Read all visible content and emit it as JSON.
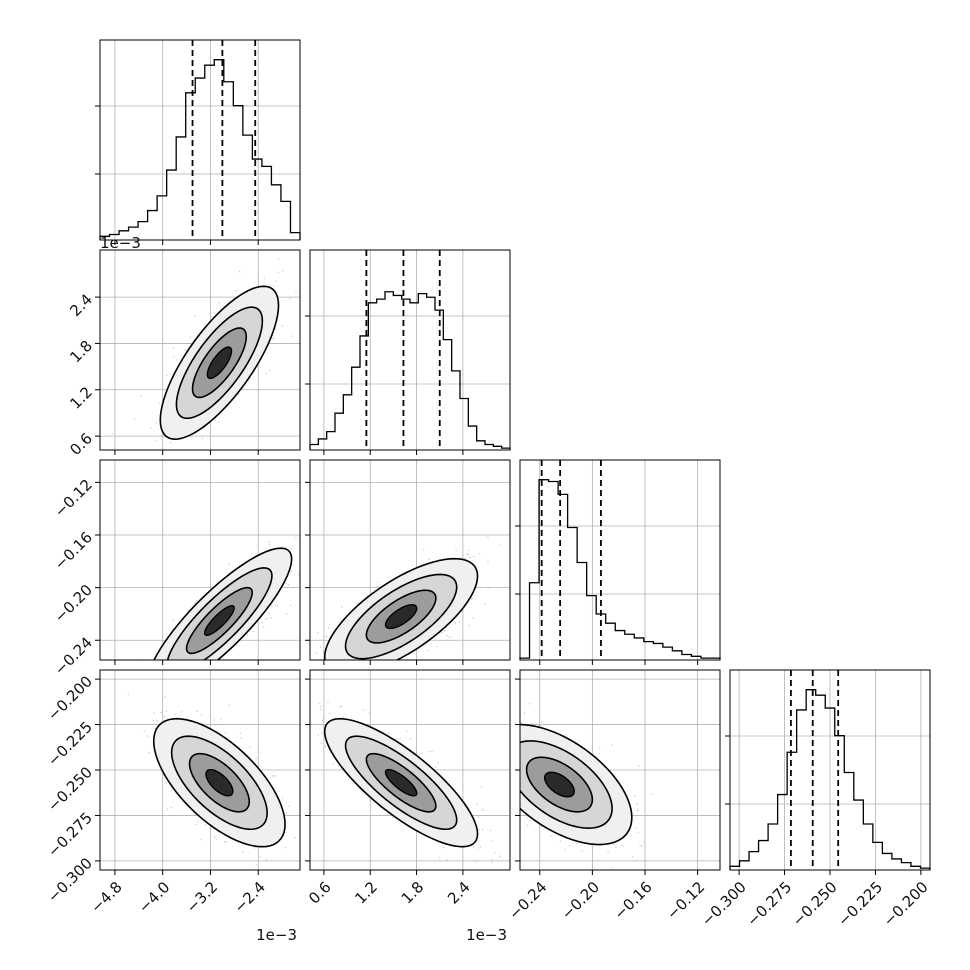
{
  "chart_data": {
    "type": "corner",
    "parameters": [
      {
        "range": [
          -5.05,
          -1.7
        ],
        "ticks": [
          -4.8,
          -4.0,
          -3.2,
          -2.4
        ],
        "tick_labels": [
          "−4.8",
          "−4.0",
          "−3.2",
          "−2.4"
        ],
        "offset_label": "1e−3",
        "quantiles": [
          -3.5,
          -3.0,
          -2.45
        ]
      },
      {
        "range": [
          0.42,
          3.01
        ],
        "ticks": [
          0.6,
          1.2,
          1.8,
          2.4
        ],
        "tick_labels": [
          "0.6",
          "1.2",
          "1.8",
          "2.4"
        ],
        "offset_label": "1e−3",
        "quantiles": [
          1.15,
          1.63,
          2.1
        ]
      },
      {
        "range": [
          -0.255,
          -0.103
        ],
        "ticks": [
          -0.24,
          -0.2,
          -0.16,
          -0.12
        ],
        "tick_labels": [
          "−0.24",
          "−0.20",
          "−0.16",
          "−0.12"
        ],
        "offset_label": "",
        "quantiles": [
          -0.2385,
          -0.2245,
          -0.1935
        ]
      },
      {
        "range": [
          -0.305,
          -0.195
        ],
        "ticks": [
          -0.3,
          -0.275,
          -0.25,
          -0.225,
          -0.2
        ],
        "tick_labels": [
          "−0.300",
          "−0.275",
          "−0.250",
          "−0.225",
          "−0.200"
        ],
        "offset_label": "",
        "quantiles": [
          -0.2715,
          -0.2595,
          -0.2455
        ]
      }
    ],
    "histograms": [
      [
        0.02,
        0.03,
        0.05,
        0.07,
        0.1,
        0.16,
        0.24,
        0.38,
        0.56,
        0.8,
        0.88,
        0.95,
        0.98,
        0.86,
        0.73,
        0.57,
        0.44,
        0.4,
        0.3,
        0.21,
        0.04
      ],
      [
        0.03,
        0.06,
        0.1,
        0.2,
        0.3,
        0.45,
        0.62,
        0.8,
        0.82,
        0.86,
        0.84,
        0.82,
        0.8,
        0.85,
        0.83,
        0.76,
        0.6,
        0.43,
        0.28,
        0.13,
        0.05,
        0.03,
        0.02,
        0.01
      ],
      [
        0.01,
        0.42,
        0.98,
        0.97,
        0.9,
        0.72,
        0.53,
        0.35,
        0.25,
        0.2,
        0.16,
        0.14,
        0.12,
        0.1,
        0.09,
        0.07,
        0.05,
        0.03,
        0.02,
        0.01,
        0.01
      ],
      [
        0.02,
        0.05,
        0.1,
        0.16,
        0.25,
        0.41,
        0.64,
        0.87,
        0.98,
        0.95,
        0.88,
        0.73,
        0.53,
        0.38,
        0.25,
        0.15,
        0.09,
        0.06,
        0.04,
        0.02,
        0.01
      ]
    ],
    "correlations": {
      "p1_p0": {
        "center": [
          -3.05,
          1.55
        ],
        "sd": [
          0.45,
          0.45
        ],
        "rho": 0.75
      },
      "p2_p0": {
        "center": [
          -3.05,
          -0.225
        ],
        "sd": [
          0.55,
          0.025
        ],
        "rho": 0.85
      },
      "p2_p1": {
        "center": [
          1.6,
          -0.222
        ],
        "sd": [
          0.45,
          0.02
        ],
        "rho": 0.7
      },
      "p3_p0": {
        "center": [
          -3.05,
          -0.257
        ],
        "sd": [
          0.5,
          0.016
        ],
        "rho": -0.65
      },
      "p3_p1": {
        "center": [
          1.6,
          -0.257
        ],
        "sd": [
          0.45,
          0.016
        ],
        "rho": -0.8
      },
      "p3_p2": {
        "center": [
          -0.225,
          -0.258
        ],
        "sd": [
          0.025,
          0.015
        ],
        "rho": -0.55
      }
    },
    "grid": true,
    "title": "",
    "xlabel": "",
    "ylabel": ""
  }
}
